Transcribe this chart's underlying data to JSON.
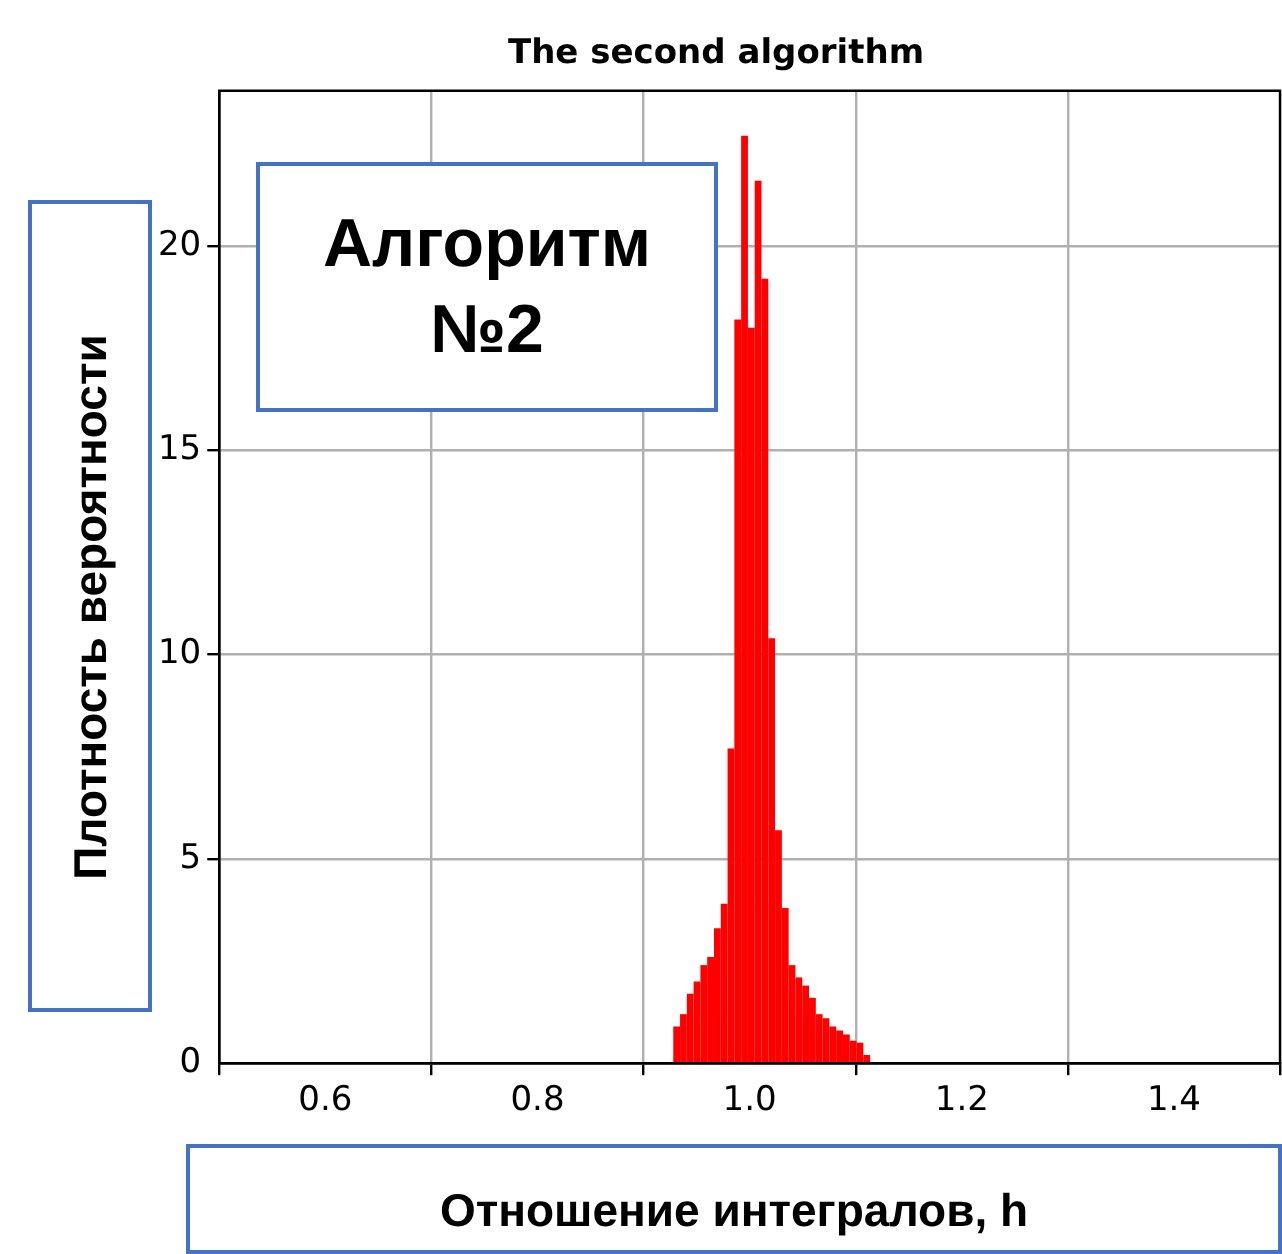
{
  "chart_data": {
    "type": "histogram",
    "title": "The second algorithm",
    "xlabel": "Отношение интегралов, h",
    "ylabel": "Плотность вероятности",
    "annotations": [
      "Алгоритм №2"
    ],
    "bins": [
      0.928,
      0.9344,
      0.9408,
      0.9472,
      0.9536,
      0.96,
      0.9664,
      0.9728,
      0.9792,
      0.9856,
      0.992,
      0.9984,
      1.0048,
      1.0112,
      1.0176,
      1.024,
      1.0304,
      1.0368,
      1.0432,
      1.0496,
      1.056,
      1.0624,
      1.0688,
      1.0752,
      1.0816,
      1.088,
      1.0944,
      1.1008,
      1.1072,
      1.1136
    ],
    "values": [
      0.9,
      1.2,
      1.7,
      2.0,
      2.4,
      2.6,
      3.3,
      3.9,
      7.7,
      18.2,
      22.7,
      18.0,
      21.6,
      19.2,
      10.4,
      5.7,
      3.8,
      2.4,
      2.1,
      1.9,
      1.6,
      1.2,
      1.1,
      0.9,
      0.8,
      0.7,
      0.55,
      0.5,
      0.2
    ],
    "color": "#ff0000",
    "xlim": [
      0.5,
      1.5
    ],
    "ylim": [
      0,
      23.8
    ],
    "xticks": [
      0.6,
      0.8,
      {
        "value": 1,
        "label": "1.0"
      },
      1.2,
      1.4
    ],
    "yticks": [
      0,
      5,
      10,
      15,
      20
    ],
    "grid": true
  }
}
